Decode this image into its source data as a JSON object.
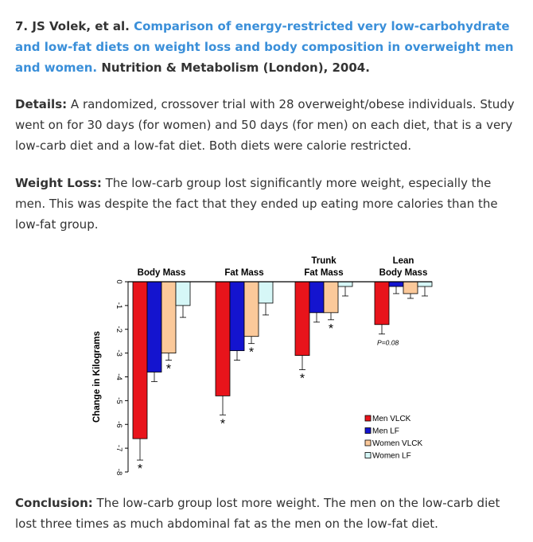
{
  "entry": {
    "number": "7.",
    "authors": "JS Volek, et al.",
    "title_link": "Comparison of energy-restricted very low-carbohydrate and low-fat diets on weight loss and body composition in overweight men and women.",
    "journal": "Nutrition & Metabolism (London), 2004."
  },
  "details": {
    "label": "Details:",
    "text": "A randomized, crossover trial with 28 overweight/obese individuals. Study went on for 30 days (for women) and 50 days (for men) on each diet, that is a very low-carb diet and a low-fat diet. Both diets were calorie restricted."
  },
  "weight_loss": {
    "label": "Weight Loss:",
    "text": "The low-carb group lost significantly more weight, especially the men. This was despite the fact that they ended up eating more calories than the low-fat group."
  },
  "conclusion": {
    "label": "Conclusion:",
    "text": "The low-carb group lost more weight. The men on the low-carb diet lost three times as much abdominal fat as the men on the low-fat diet."
  },
  "chart_data": {
    "type": "bar",
    "ylabel": "Change in Kilograms",
    "ylim": [
      -8,
      0
    ],
    "yticks": [
      0,
      -1,
      -2,
      -3,
      -4,
      -5,
      -6,
      -7,
      -8
    ],
    "categories": [
      [
        "Body Mass"
      ],
      [
        "Fat Mass"
      ],
      [
        "Trunk",
        "Fat Mass"
      ],
      [
        "Lean",
        "Body Mass"
      ]
    ],
    "series": [
      {
        "name": "Men VLCK",
        "color": "#e8141b",
        "values": [
          -6.6,
          -4.8,
          -3.1,
          -1.8
        ],
        "errors": [
          0.9,
          0.8,
          0.6,
          0.4
        ]
      },
      {
        "name": "Men LF",
        "color": "#1414cf",
        "values": [
          -3.8,
          -2.9,
          -1.3,
          -0.2
        ],
        "errors": [
          0.4,
          0.4,
          0.4,
          0.3
        ]
      },
      {
        "name": "Women VLCK",
        "color": "#fbc99a",
        "values": [
          -3.0,
          -2.3,
          -1.3,
          -0.5
        ],
        "errors": [
          0.3,
          0.3,
          0.3,
          0.2
        ]
      },
      {
        "name": "Women LF",
        "color": "#d6f7f7",
        "values": [
          -1.0,
          -0.9,
          -0.2,
          -0.2
        ],
        "errors": [
          0.5,
          0.5,
          0.4,
          0.4
        ]
      }
    ],
    "annotations": [
      {
        "group": 0,
        "series": 0,
        "text": "*"
      },
      {
        "group": 0,
        "series": 2,
        "text": "*"
      },
      {
        "group": 1,
        "series": 0,
        "text": "*"
      },
      {
        "group": 1,
        "series": 2,
        "text": "*"
      },
      {
        "group": 2,
        "series": 0,
        "text": "*"
      },
      {
        "group": 2,
        "series": 2,
        "text": "*"
      },
      {
        "group": 3,
        "series": 0,
        "text": "P=0.08"
      }
    ],
    "legend_position": "bottom-right"
  }
}
